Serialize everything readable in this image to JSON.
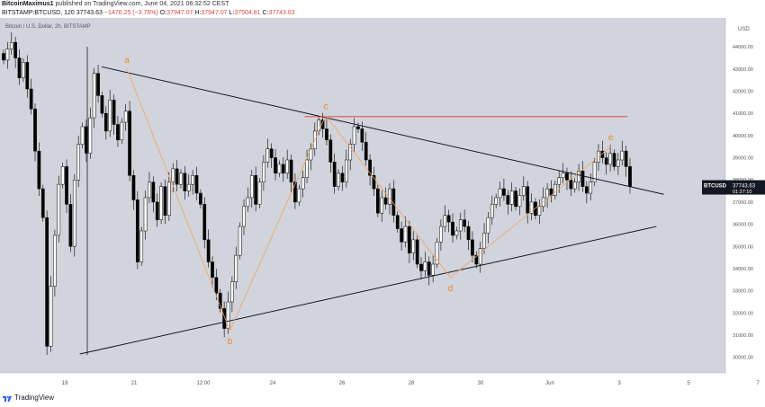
{
  "header": {
    "user": "BitcoinMaximus1",
    "published": "published on TradingView.com, June 04, 2021 06:32:52 CEST",
    "symbol": "BITSTAMP:BTCUSD, 120",
    "last": "37743.63",
    "change": "−1476.25 (−3.76%)",
    "open_label": "O:",
    "open": "37947.07",
    "high_label": "H:",
    "high": "37947.07",
    "low_label": "L:",
    "low": "37504.81",
    "close_label": "C:",
    "close": "37743.63"
  },
  "legend_text": "Bitcoin / U.S. Dollar, 2h, BITSTAMP",
  "footer": {
    "brand": "TradingView"
  },
  "price_badge": {
    "ticker": "BTCUSD",
    "price": "37743.63",
    "countdown": "01:27:10"
  },
  "colors": {
    "background": "#d1d4dc",
    "candle": "#000000",
    "trendline": "#131722",
    "resistance": "#e53935",
    "wave_path": "#f5a35c",
    "wave_label": "#f08a24",
    "badge": "#131722"
  },
  "chart_data": {
    "type": "candlestick",
    "currency": "USD",
    "y_ticks": [
      30000,
      31000,
      32000,
      33000,
      34000,
      35000,
      36000,
      37000,
      38000,
      39000,
      40000,
      41000,
      42000,
      43000,
      44000
    ],
    "ylim": [
      29300,
      45300
    ],
    "x_ticks": [
      "19",
      "21",
      "12:00",
      "24",
      "26",
      "28",
      "30",
      "Jun",
      "3",
      "5",
      "7"
    ],
    "wave_points": [
      {
        "label": "a",
        "x_frac": 0.175,
        "price": 43000
      },
      {
        "label": "b",
        "x_frac": 0.317,
        "price": 31200
      },
      {
        "label": "c",
        "x_frac": 0.449,
        "price": 40900
      },
      {
        "label": "d",
        "x_frac": 0.621,
        "price": 33600
      },
      {
        "label": "e",
        "x_frac": 0.842,
        "price": 39500
      }
    ],
    "resistance": {
      "price": 40850,
      "x_from": 0.42,
      "x_to": 0.865
    },
    "upper_trendline": [
      {
        "x_frac": 0.14,
        "price": 43100
      },
      {
        "x_frac": 0.915,
        "price": 37350
      }
    ],
    "lower_trendline": [
      {
        "x_frac": 0.11,
        "price": 30150
      },
      {
        "x_frac": 0.905,
        "price": 35900
      }
    ],
    "candles_closes": [
      43400,
      43900,
      44200,
      43500,
      42600,
      43300,
      42100,
      41200,
      39300,
      37600,
      36300,
      30500,
      33200,
      35500,
      37800,
      38600,
      36900,
      35000,
      38000,
      39600,
      40400,
      39200,
      40800,
      42800,
      41800,
      41000,
      40200,
      41600,
      40500,
      39800,
      40600,
      41100,
      38200,
      37100,
      34300,
      35700,
      37200,
      37900,
      37000,
      36200,
      37700,
      36400,
      37900,
      38500,
      37800,
      38300,
      37500,
      37800,
      38200,
      37400,
      36900,
      35300,
      34300,
      33600,
      32900,
      32200,
      31300,
      32500,
      33400,
      34600,
      35900,
      36800,
      37200,
      38200,
      36900,
      37900,
      38800,
      39400,
      39000,
      38300,
      38700,
      38300,
      38900,
      37900,
      37000,
      37600,
      38100,
      38900,
      39400,
      40200,
      40700,
      40300,
      39800,
      38800,
      37700,
      38300,
      37900,
      38900,
      39600,
      40400,
      40300,
      39700,
      38900,
      38200,
      37600,
      36500,
      37200,
      36900,
      37600,
      36400,
      35800,
      35200,
      35900,
      34700,
      35300,
      34200,
      33900,
      34300,
      33700,
      34200,
      35200,
      35900,
      36400,
      36100,
      35500,
      35700,
      36200,
      35900,
      35300,
      34600,
      34200,
      34900,
      35600,
      36300,
      36900,
      37200,
      37600,
      37300,
      36900,
      37500,
      36800,
      37300,
      37700,
      36500,
      37000,
      36400,
      36800,
      37200,
      37600,
      37300,
      37800,
      38100,
      38300,
      38000,
      37600,
      37900,
      38400,
      37700,
      37400,
      37900,
      38800,
      39300,
      39000,
      38700,
      39200,
      38600,
      38900,
      39300,
      38600,
      37700
    ]
  }
}
